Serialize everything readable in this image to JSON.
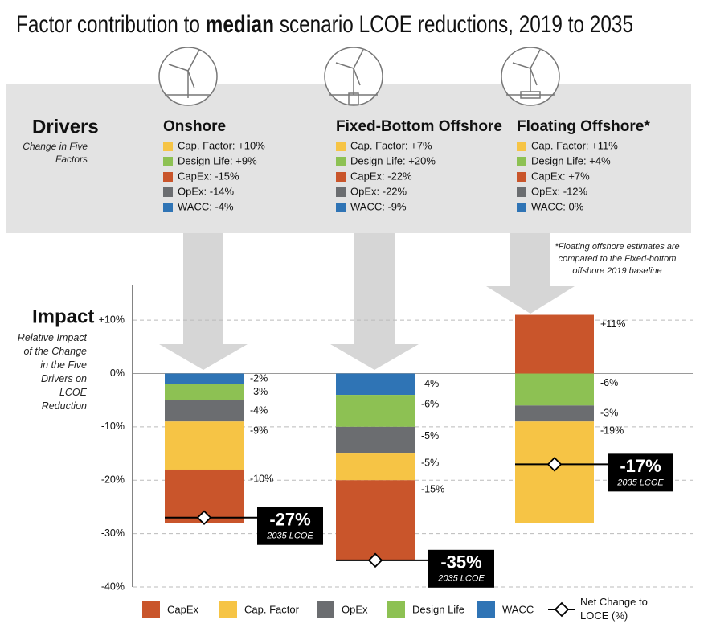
{
  "chart_data": {
    "type": "stacked_bar",
    "title_parts": [
      "Factor contribution to ",
      "median",
      " scenario LCOE reductions, 2019 to 2035"
    ],
    "drivers_label": "Drivers",
    "drivers_subtitle": "Change in Five Factors",
    "categories": [
      "Onshore",
      "Fixed-Bottom Offshore",
      "Floating Offshore*"
    ],
    "drivers": [
      [
        "Cap. Factor: +10%",
        "Design Life: +9%",
        "CapEx: -15%",
        "OpEx: -14%",
        "WACC: -4%"
      ],
      [
        "Cap. Factor: +7%",
        "Design Life: +20%",
        "CapEx: -22%",
        "OpEx: -22%",
        "WACC: -9%"
      ],
      [
        "Cap. Factor: +11%",
        "Design Life: +4%",
        "CapEx: +7%",
        "OpEx: -12%",
        "WACC: 0%"
      ]
    ],
    "footnote": "*Floating offshore estimates are compared to the Fixed-bottom offshore 2019 baseline",
    "impact_label": "Impact",
    "impact_description": "Relative Impact of the Change in the Five Drivers on LCOE Reduction",
    "ylim": [
      -40,
      16.5
    ],
    "yticks": [
      {
        "value": 10,
        "label": "+10%"
      },
      {
        "value": 0,
        "label": "0%"
      },
      {
        "value": -10,
        "label": "-10%"
      },
      {
        "value": -20,
        "label": "-20%"
      },
      {
        "value": -30,
        "label": "-30%"
      },
      {
        "value": -40,
        "label": "-40%"
      }
    ],
    "grid": true,
    "series": [
      {
        "name": "CapEx",
        "color": "#c9552b",
        "values": [
          -10,
          -15,
          11
        ],
        "value_labels": [
          "-10%",
          "-15%",
          "+11%"
        ]
      },
      {
        "name": "Cap. Factor",
        "color": "#f6c445",
        "values": [
          -9,
          -5,
          -19
        ],
        "value_labels": [
          "-9%",
          "-5%",
          "-19%"
        ]
      },
      {
        "name": "OpEx",
        "color": "#6b6d70",
        "values": [
          -4,
          -5,
          -3
        ],
        "value_labels": [
          "-4%",
          "-5%",
          "-3%"
        ]
      },
      {
        "name": "Design Life",
        "color": "#8dc153",
        "values": [
          -3,
          -6,
          -6
        ],
        "value_labels": [
          "-3%",
          "-6%",
          "-6%"
        ]
      },
      {
        "name": "WACC",
        "color": "#2f74b5",
        "values": [
          -2,
          -4,
          null
        ],
        "value_labels": [
          "-2%",
          "-4%",
          null
        ]
      }
    ],
    "net": {
      "name": "Net Change to LOCE (%)",
      "values": [
        -27,
        -35,
        -17
      ],
      "value_labels": [
        "-27%",
        "-35%",
        "-17%"
      ],
      "sublabel": "2035 LCOE"
    }
  }
}
